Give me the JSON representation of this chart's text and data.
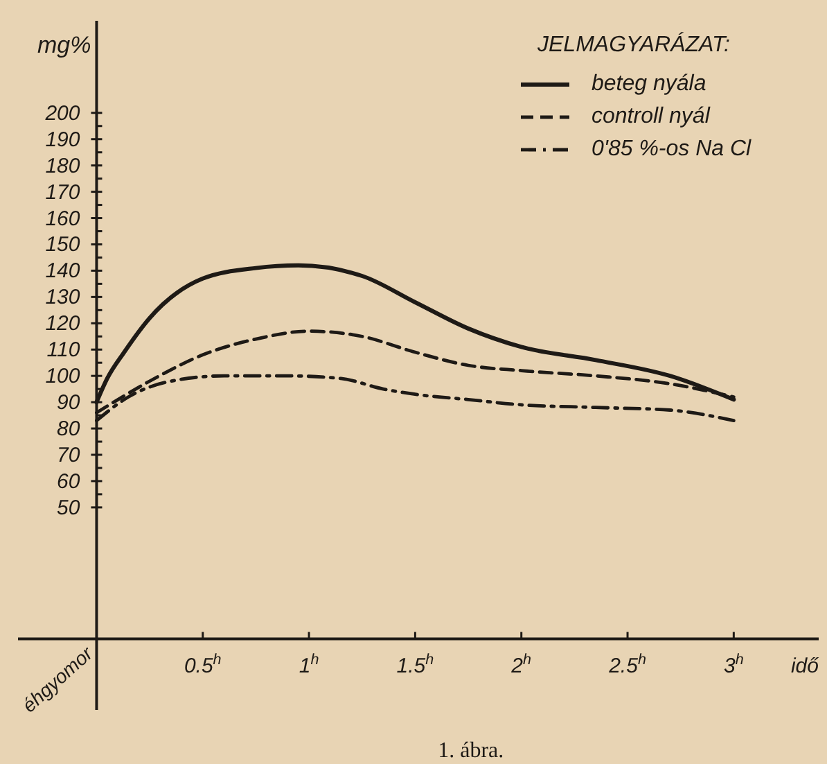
{
  "chart_data": {
    "type": "line",
    "xlabel": "idő",
    "ylabel": "mg%",
    "legend_title": "JELMAGYARÁZAT:",
    "legend": "top right",
    "annotations": [
      "éhgyomor",
      "1. ábra."
    ],
    "xlim": [
      -0.37,
      3.4
    ],
    "xticks": [
      {
        "value": 0.5,
        "label": "0.5$^{h}$"
      },
      {
        "value": 1,
        "label": "1$^{h}$"
      },
      {
        "value": 1.5,
        "label": "1.5$^{h}$"
      },
      {
        "value": 2,
        "label": "2$^{h}$"
      },
      {
        "value": 2.5,
        "label": "2.5$^{h}$"
      },
      {
        "value": 3,
        "label": "3$^{h}$"
      }
    ],
    "ylim": [
      -27,
      235
    ],
    "yticks": [
      50,
      {
        "value": 55,
        "label": null
      },
      60,
      {
        "value": 65,
        "label": null
      },
      70,
      {
        "value": 75,
        "label": null
      },
      80,
      {
        "value": 85,
        "label": null
      },
      90,
      {
        "value": 95,
        "label": null
      },
      100,
      {
        "value": 105,
        "label": null
      },
      110,
      {
        "value": 115,
        "label": null
      },
      120,
      {
        "value": 125,
        "label": null
      },
      130,
      {
        "value": 135,
        "label": null
      },
      140,
      {
        "value": 145,
        "label": null
      },
      150,
      {
        "value": 155,
        "label": null
      },
      160,
      {
        "value": 165,
        "label": null
      },
      170,
      {
        "value": 175,
        "label": null
      },
      180,
      {
        "value": 185,
        "label": null
      },
      190,
      {
        "value": 195,
        "label": null
      },
      200
    ],
    "series": [
      {
        "name": "beteg nyála",
        "color": "#1e1a16",
        "line_style": "solid",
        "x": [
          0,
          0.05,
          0.13,
          0.25,
          0.5,
          0.75,
          0.95,
          1.25,
          1.5,
          1.75,
          2,
          2.35,
          2.7,
          3
        ],
        "values": [
          90,
          99,
          109,
          122,
          137,
          141,
          142,
          138,
          128,
          118,
          111,
          106,
          100,
          91
        ]
      },
      {
        "name": "controll nyál",
        "color": "#1e1a16",
        "line_style": "dashed",
        "x": [
          0,
          0.25,
          0.5,
          0.75,
          1,
          1.25,
          1.5,
          1.75,
          2,
          2.35,
          2.7,
          3
        ],
        "values": [
          86,
          98,
          108,
          114,
          117,
          115,
          109,
          104,
          102,
          100,
          97,
          92
        ]
      },
      {
        "name": "0'85 %-os Na Cl",
        "color": "#1e1a16",
        "line_style": "dashdot",
        "x": [
          0,
          0.15,
          0.35,
          0.6,
          0.9,
          1.15,
          1.35,
          1.5,
          1.75,
          2,
          2.35,
          2.7,
          3
        ],
        "values": [
          83,
          92,
          98,
          100,
          100,
          99,
          95,
          93,
          91,
          89,
          88,
          87,
          83
        ]
      }
    ]
  }
}
